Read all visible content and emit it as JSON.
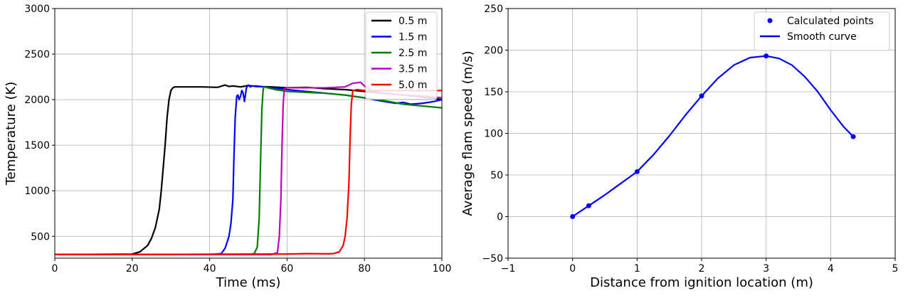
{
  "chart_data": [
    {
      "type": "line",
      "title": "",
      "xlabel": "Time (ms)",
      "ylabel": "Temperature (K)",
      "xlim": [
        0,
        100
      ],
      "ylim": [
        260,
        3000
      ],
      "xticks": [
        0,
        20,
        40,
        60,
        80,
        100
      ],
      "yticks": [
        500,
        1000,
        1500,
        2000,
        2500,
        3000
      ],
      "grid": true,
      "legend_position": "top-right",
      "series": [
        {
          "name": "0.5 m",
          "color": "#000000",
          "x": [
            0,
            20,
            22,
            24,
            25,
            26,
            27,
            27.5,
            28,
            28.5,
            29,
            29.5,
            30,
            30.5,
            31,
            32,
            34,
            38,
            42,
            44,
            45,
            46,
            48,
            50,
            52,
            56,
            60,
            65,
            70,
            75,
            80,
            85,
            90,
            95,
            100
          ],
          "y": [
            300,
            305,
            330,
            400,
            480,
            600,
            800,
            1000,
            1250,
            1500,
            1800,
            2000,
            2100,
            2130,
            2140,
            2140,
            2140,
            2140,
            2135,
            2160,
            2145,
            2150,
            2140,
            2155,
            2145,
            2140,
            2130,
            2135,
            2120,
            2110,
            2090,
            2070,
            2050,
            2030,
            2000
          ]
        },
        {
          "name": "1.5 m",
          "color": "#0000ff",
          "x": [
            0,
            40,
            43,
            44,
            45,
            45.5,
            46,
            46.3,
            46.6,
            47,
            47.3,
            47.6,
            48,
            48.3,
            48.6,
            49,
            49.5,
            50,
            50.5,
            51,
            52,
            54,
            56,
            60,
            65,
            70,
            75,
            80,
            85,
            88,
            90,
            92,
            95,
            98,
            100
          ],
          "y": [
            300,
            300,
            310,
            370,
            500,
            640,
            900,
            1400,
            1800,
            2040,
            2050,
            2000,
            2040,
            2100,
            2080,
            1980,
            2130,
            2160,
            2140,
            2150,
            2150,
            2140,
            2130,
            2110,
            2090,
            2070,
            2050,
            2020,
            1980,
            1960,
            1970,
            1950,
            1960,
            1980,
            2000
          ]
        },
        {
          "name": "2.5 m",
          "color": "#008000",
          "x": [
            0,
            50,
            51.5,
            52.3,
            52.8,
            53.2,
            53.5,
            53.8,
            54,
            55,
            57,
            60,
            65,
            70,
            75,
            80,
            85,
            90,
            95,
            100
          ],
          "y": [
            300,
            300,
            310,
            380,
            700,
            1400,
            1900,
            2100,
            2140,
            2130,
            2110,
            2090,
            2080,
            2070,
            2050,
            2020,
            1990,
            1950,
            1930,
            1910
          ]
        },
        {
          "name": "3.5 m",
          "color": "#c000c0",
          "x": [
            0,
            56,
            57.5,
            58,
            58.4,
            58.7,
            59,
            59.3,
            60,
            62,
            65,
            70,
            75,
            77,
            79,
            80,
            82,
            85,
            90,
            95,
            100
          ],
          "y": [
            300,
            300,
            320,
            500,
            900,
            1500,
            1950,
            2120,
            2130,
            2130,
            2130,
            2130,
            2140,
            2180,
            2190,
            2150,
            2100,
            2070,
            2050,
            2040,
            2020
          ]
        },
        {
          "name": "5.0 m",
          "color": "#ff0000",
          "x": [
            0,
            30,
            50,
            60,
            65,
            70,
            72,
            73.5,
            74.5,
            75,
            75.5,
            76,
            76.3,
            76.6,
            77,
            78,
            80,
            85,
            90,
            95,
            100
          ],
          "y": [
            300,
            302,
            305,
            305,
            310,
            308,
            310,
            330,
            400,
            500,
            700,
            1100,
            1600,
            1950,
            2100,
            2110,
            2100,
            2100,
            2100,
            2100,
            2100
          ]
        }
      ]
    },
    {
      "type": "line",
      "title": "",
      "xlabel": "Distance from ignition location (m)",
      "ylabel": "Average flam speed (m/s)",
      "xlim": [
        -1,
        5
      ],
      "ylim": [
        -50,
        250
      ],
      "xticks": [
        -1,
        0,
        1,
        2,
        3,
        4,
        5
      ],
      "yticks": [
        -50,
        0,
        50,
        100,
        150,
        200,
        250
      ],
      "grid": true,
      "legend_position": "top-right",
      "series": [
        {
          "name": "Calculated points",
          "color": "#0000ff",
          "style": "markers",
          "x": [
            0,
            0.25,
            1,
            2,
            3,
            4.35
          ],
          "y": [
            0,
            13,
            54,
            145,
            193,
            96
          ]
        },
        {
          "name": "Smooth curve",
          "color": "#0000ff",
          "style": "line",
          "x": [
            0,
            0.25,
            0.5,
            0.75,
            1,
            1.25,
            1.5,
            1.75,
            2,
            2.25,
            2.5,
            2.75,
            3,
            3.2,
            3.4,
            3.6,
            3.8,
            4.0,
            4.2,
            4.35
          ],
          "y": [
            0,
            13,
            26,
            40,
            54,
            74,
            97,
            122,
            145,
            166,
            182,
            191,
            193,
            190,
            182,
            168,
            150,
            128,
            108,
            96
          ]
        }
      ]
    }
  ]
}
